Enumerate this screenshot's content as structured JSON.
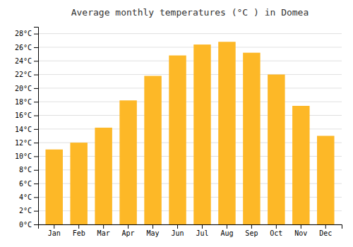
{
  "chart_data": {
    "type": "bar",
    "title": "Average monthly temperatures (°C ) in Domea",
    "categories": [
      "Jan",
      "Feb",
      "Mar",
      "Apr",
      "May",
      "Jun",
      "Jul",
      "Aug",
      "Sep",
      "Oct",
      "Nov",
      "Dec"
    ],
    "values": [
      11,
      12,
      14.2,
      18.2,
      21.8,
      24.8,
      26.4,
      26.8,
      25.2,
      22,
      17.4,
      13
    ],
    "color": "#FDB827",
    "ylim": [
      0,
      29
    ],
    "yticks": [
      {
        "value": 0,
        "label": "0°C"
      },
      {
        "value": 2,
        "label": "2°C"
      },
      {
        "value": 4,
        "label": "4°C"
      },
      {
        "value": 6,
        "label": "6°C"
      },
      {
        "value": 8,
        "label": "8°C"
      },
      {
        "value": 10,
        "label": "10°C"
      },
      {
        "value": 12,
        "label": "12°C"
      },
      {
        "value": 14,
        "label": "14°C"
      },
      {
        "value": 16,
        "label": "16°C"
      },
      {
        "value": 18,
        "label": "18°C"
      },
      {
        "value": 20,
        "label": "20°C"
      },
      {
        "value": 22,
        "label": "22°C"
      },
      {
        "value": 24,
        "label": "24°C"
      },
      {
        "value": 26,
        "label": "26°C"
      },
      {
        "value": 28,
        "label": "28°C"
      }
    ],
    "grid": true
  }
}
